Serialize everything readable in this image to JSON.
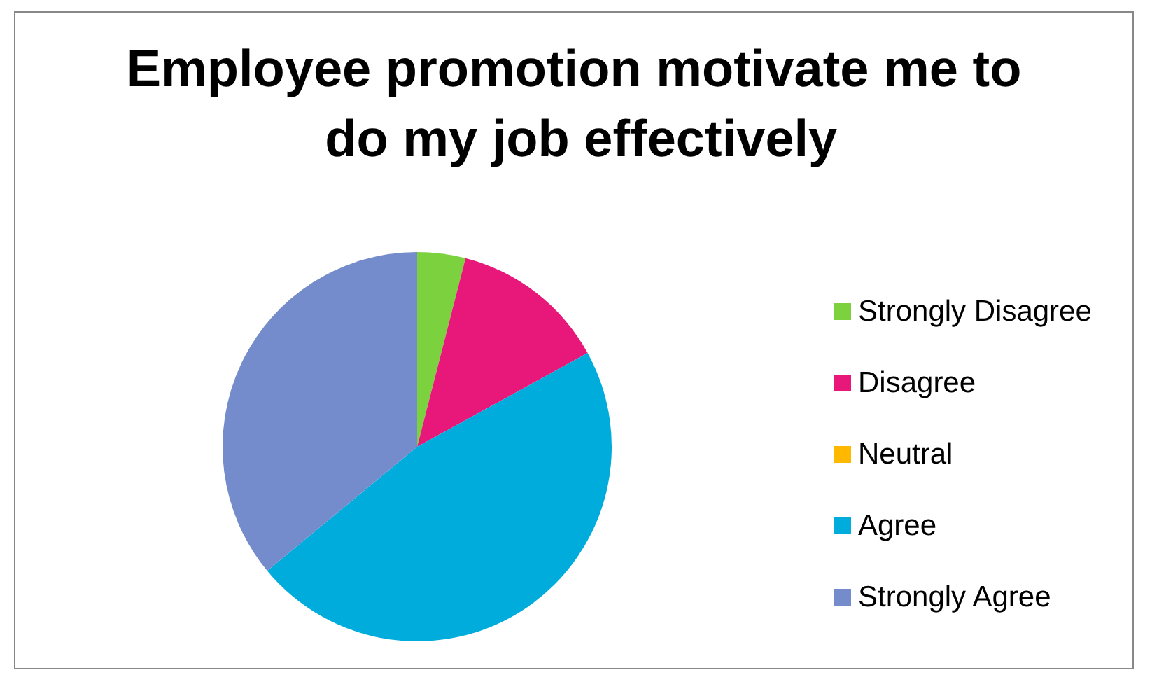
{
  "chart_data": {
    "type": "pie",
    "title": "Employee promotion motivate me to do my job effectively",
    "categories": [
      "Strongly Disagree",
      "Disagree",
      "Neutral",
      "Agree",
      "Strongly Agree"
    ],
    "values": [
      4,
      13,
      0,
      47,
      36
    ],
    "colors": [
      "#7cd13f",
      "#e8177a",
      "#ffb800",
      "#00acdc",
      "#748ccb"
    ],
    "legend": "right"
  }
}
